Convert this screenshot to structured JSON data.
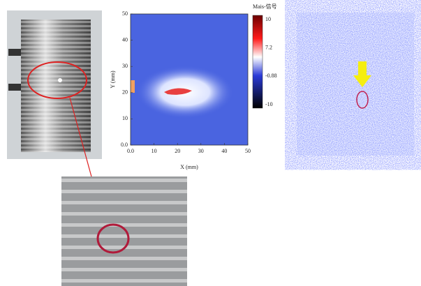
{
  "scan_plot": {
    "x_label": "X (mm)",
    "y_label": "Y (mm)",
    "xlim": [
      0,
      50
    ],
    "ylim": [
      0,
      50
    ],
    "xticks": [
      {
        "value": 0,
        "label": "0.0"
      },
      10,
      20,
      30,
      40,
      50
    ],
    "yticks": [
      {
        "value": 0,
        "label": "0.0"
      },
      10,
      20,
      30,
      40,
      50
    ],
    "colorbar": {
      "label": "Mais-信号",
      "ticks": [
        "10",
        "7.2",
        "-0.88",
        "-10"
      ]
    }
  }
}
